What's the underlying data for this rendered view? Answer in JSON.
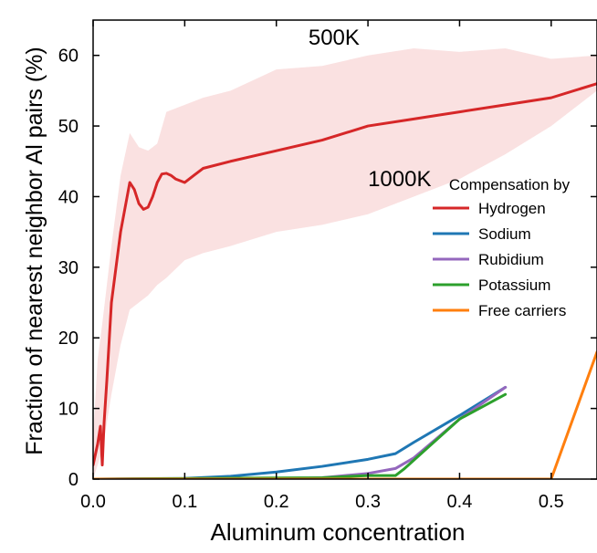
{
  "chart_data": {
    "type": "line",
    "xlabel": "Aluminum concentration",
    "ylabel": "Fraction of nearest neighbor Al pairs (%)",
    "xlim": [
      0.0,
      0.55
    ],
    "ylim": [
      0,
      65
    ],
    "xticks": [
      0.0,
      0.1,
      0.2,
      0.3,
      0.4,
      0.5
    ],
    "xtick_labels": [
      "0.0",
      "0.1",
      "0.2",
      "0.3",
      "0.4",
      "0.5"
    ],
    "yticks": [
      0,
      10,
      20,
      30,
      40,
      50,
      60
    ],
    "ytick_labels": [
      "0",
      "10",
      "20",
      "30",
      "40",
      "50",
      "60"
    ],
    "grid": false,
    "legend": {
      "title": "Compensation by",
      "placement": "right"
    },
    "annotations": [
      {
        "text": "500K",
        "x": 0.235,
        "y": 61.5
      },
      {
        "text": "1000K",
        "x": 0.3,
        "y": 41.5
      }
    ],
    "band": {
      "color": "#f9dcdc",
      "x": [
        0.0,
        0.005,
        0.01,
        0.02,
        0.03,
        0.04,
        0.05,
        0.06,
        0.07,
        0.08,
        0.1,
        0.12,
        0.15,
        0.2,
        0.25,
        0.3,
        0.35,
        0.4,
        0.45,
        0.5,
        0.55
      ],
      "upper": [
        6,
        17,
        22,
        33,
        43,
        49,
        47,
        46.5,
        47.5,
        52,
        53,
        54,
        55,
        58,
        58.5,
        60,
        61,
        60.5,
        61,
        59.5,
        60
      ],
      "lower": [
        0,
        2,
        4,
        12,
        19,
        24,
        25,
        26,
        27.5,
        28.5,
        31,
        32,
        33,
        35,
        36,
        37.5,
        40,
        42.5,
        46,
        50,
        55
      ]
    },
    "series": [
      {
        "name": "Hydrogen",
        "color": "#d62728",
        "x": [
          0.0,
          0.005,
          0.008,
          0.01,
          0.012,
          0.015,
          0.02,
          0.03,
          0.04,
          0.045,
          0.05,
          0.055,
          0.06,
          0.065,
          0.07,
          0.075,
          0.08,
          0.085,
          0.09,
          0.1,
          0.11,
          0.12,
          0.15,
          0.2,
          0.25,
          0.3,
          0.35,
          0.4,
          0.45,
          0.5,
          0.55
        ],
        "y": [
          2,
          5,
          7.5,
          2,
          8,
          14,
          25,
          35,
          42,
          41,
          39,
          38.2,
          38.5,
          40,
          42,
          43.2,
          43.3,
          43,
          42.5,
          42,
          43,
          44,
          45,
          46.5,
          48,
          50,
          51,
          52,
          53,
          54,
          56
        ]
      },
      {
        "name": "Sodium",
        "color": "#1f77b4",
        "x": [
          0.0,
          0.1,
          0.15,
          0.2,
          0.25,
          0.3,
          0.33,
          0.35,
          0.4,
          0.45
        ],
        "y": [
          0,
          0.1,
          0.4,
          1,
          1.8,
          2.8,
          3.6,
          5.2,
          9,
          13
        ]
      },
      {
        "name": "Rubidium",
        "color": "#9467bd",
        "x": [
          0.0,
          0.2,
          0.25,
          0.3,
          0.33,
          0.35,
          0.4,
          0.45
        ],
        "y": [
          0,
          0,
          0.2,
          0.8,
          1.5,
          3,
          8.5,
          13
        ]
      },
      {
        "name": "Potassium",
        "color": "#2ca02c",
        "x": [
          0.0,
          0.25,
          0.3,
          0.33,
          0.34,
          0.37,
          0.4,
          0.45
        ],
        "y": [
          0,
          0.2,
          0.5,
          0.5,
          1.5,
          5,
          8.5,
          12
        ]
      },
      {
        "name": "Free carriers",
        "color": "#ff7f0e",
        "x": [
          0.0,
          0.5,
          0.55
        ],
        "y": [
          0,
          0,
          18
        ]
      }
    ]
  }
}
